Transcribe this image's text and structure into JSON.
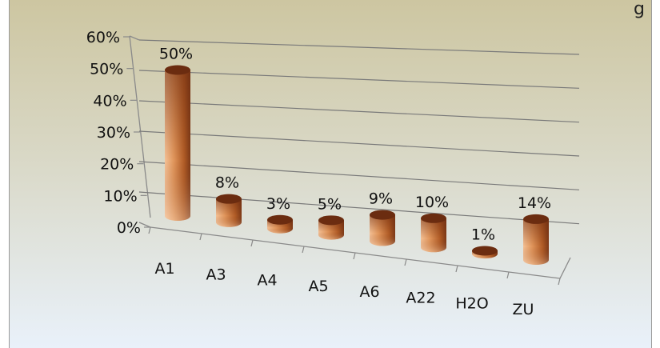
{
  "chart_data": {
    "type": "bar",
    "style": "3d-cylinder",
    "title_fragment": "g",
    "categories": [
      "A1",
      "A3",
      "A4",
      "A5",
      "A6",
      "A22",
      "H2O",
      "ZU"
    ],
    "values": [
      50,
      8,
      3,
      5,
      9,
      10,
      1,
      14
    ],
    "data_labels": [
      "50%",
      "8%",
      "3%",
      "5%",
      "9%",
      "10%",
      "1%",
      "14%"
    ],
    "y_ticks": [
      "0%",
      "10%",
      "20%",
      "30%",
      "40%",
      "50%",
      "60%"
    ],
    "ylim": [
      0,
      60
    ],
    "grid": true,
    "legend": "none",
    "colors": {
      "bar_light": "#f6c89c",
      "bar_mid": "#c9753a",
      "bar_dark": "#7a3614",
      "bar_top": "#6b2c10",
      "gridline": "#7a7a7a",
      "bg_top": "#cfc7a3",
      "bg_bottom": "#e8f0f8"
    }
  }
}
